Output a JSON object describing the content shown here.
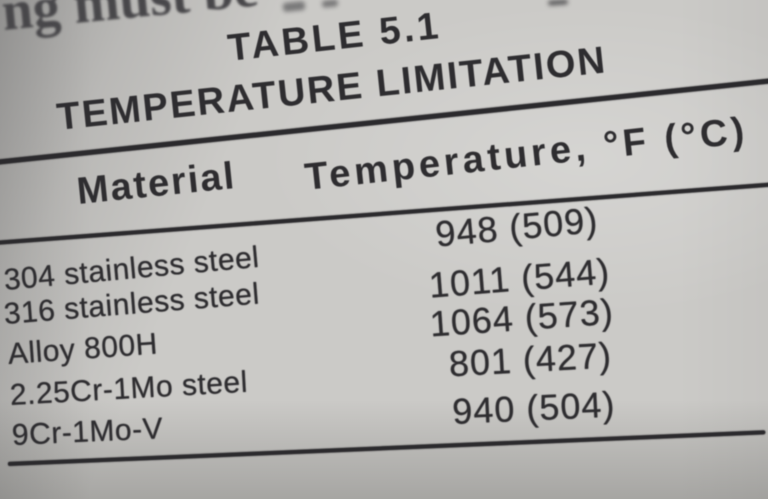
{
  "photo": {
    "partial_top_text": "ng must be",
    "table": {
      "table_number": "TABLE 5.1",
      "table_title": "TEMPERATURE LIMITATION",
      "columns": [
        "Material",
        "Temperature, °F (°C)"
      ],
      "rows": [
        {
          "material": "304 stainless steel",
          "temperature": "948 (509)"
        },
        {
          "material": "316 stainless steel",
          "temperature": "1011 (544)"
        },
        {
          "material": "Alloy 800H",
          "temperature": "1064 (573)"
        },
        {
          "material": "2.25Cr-1Mo steel",
          "temperature": "801 (427)"
        },
        {
          "material": "9Cr-1Mo-V",
          "temperature": "940 (504)"
        }
      ]
    },
    "colors": {
      "paper": "#cbcac7",
      "ink": "#2e2d30"
    }
  }
}
